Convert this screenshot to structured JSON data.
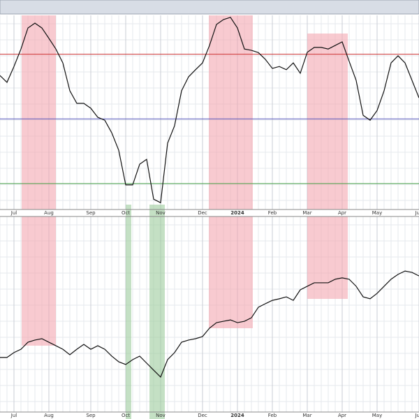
{
  "chart_data": [
    {
      "type": "line",
      "categories": [
        null,
        null,
        "Jul",
        null,
        null,
        null,
        null,
        "Aug",
        null,
        null,
        null,
        null,
        null,
        "Sep",
        null,
        null,
        null,
        null,
        "Oct",
        null,
        null,
        null,
        null,
        "Nov",
        null,
        null,
        null,
        null,
        null,
        "Dec",
        null,
        null,
        null,
        null,
        "2024",
        null,
        null,
        null,
        null,
        "Feb",
        null,
        null,
        null,
        null,
        "Mar",
        null,
        null,
        null,
        null,
        "Apr",
        null,
        null,
        null,
        null,
        "May",
        null,
        null,
        null,
        null,
        null,
        "Jun"
      ],
      "values": [
        63.4,
        61.3,
        66.2,
        71.6,
        78.1,
        79.6,
        78.1,
        74.9,
        71.6,
        67.3,
        58.7,
        54.8,
        54.8,
        53.3,
        50.5,
        49.6,
        45.7,
        40.3,
        29.6,
        29.6,
        36.0,
        37.5,
        25.2,
        24.1,
        42.5,
        47.9,
        58.7,
        63.0,
        65.2,
        67.3,
        72.7,
        79.2,
        80.7,
        81.4,
        78.1,
        71.6,
        71.2,
        70.5,
        68.4,
        65.6,
        66.2,
        65.2,
        67.3,
        64.1,
        70.6,
        72.1,
        72.1,
        71.6,
        72.7,
        73.8,
        67.8,
        61.9,
        51.1,
        49.6,
        52.6,
        58.7,
        67.3,
        69.5,
        67.3,
        61.9,
        56.5
      ],
      "color": "#111111",
      "ylim": [
        22,
        82
      ],
      "grid": true,
      "hlines": [
        {
          "value": 70,
          "color": "#cc3333"
        },
        {
          "value": 50,
          "color": "#5555bb"
        },
        {
          "value": 30,
          "color": "#44a044"
        }
      ]
    },
    {
      "type": "line",
      "categories": [
        null,
        null,
        "Jul",
        null,
        null,
        null,
        null,
        "Aug",
        null,
        null,
        null,
        null,
        null,
        "Sep",
        null,
        null,
        null,
        null,
        "Oct",
        null,
        null,
        null,
        null,
        "Nov",
        null,
        null,
        null,
        null,
        null,
        "Dec",
        null,
        null,
        null,
        null,
        "2024",
        null,
        null,
        null,
        null,
        "Feb",
        null,
        null,
        null,
        null,
        "Mar",
        null,
        null,
        null,
        null,
        "Apr",
        null,
        null,
        null,
        null,
        "May",
        null,
        null,
        null,
        null,
        null,
        "Jun"
      ],
      "values": [
        27.9,
        27.9,
        30.4,
        32.1,
        35.7,
        36.8,
        37.5,
        35.7,
        33.9,
        32.1,
        29.3,
        32.1,
        34.6,
        32.1,
        33.9,
        32.1,
        28.6,
        25.7,
        24.3,
        26.8,
        28.6,
        25.0,
        21.4,
        17.9,
        26.8,
        30.4,
        35.7,
        36.8,
        37.5,
        38.6,
        42.9,
        45.7,
        46.4,
        47.1,
        45.7,
        46.4,
        48.2,
        53.6,
        55.4,
        57.1,
        57.9,
        58.9,
        57.1,
        62.5,
        64.3,
        66.1,
        66.1,
        66.1,
        67.9,
        68.6,
        67.9,
        64.3,
        58.9,
        57.9,
        60.7,
        64.3,
        67.9,
        70.4,
        72.1,
        71.4,
        69.6
      ],
      "color": "#111111",
      "ylim": [
        0,
        100
      ],
      "grid": true
    }
  ]
}
